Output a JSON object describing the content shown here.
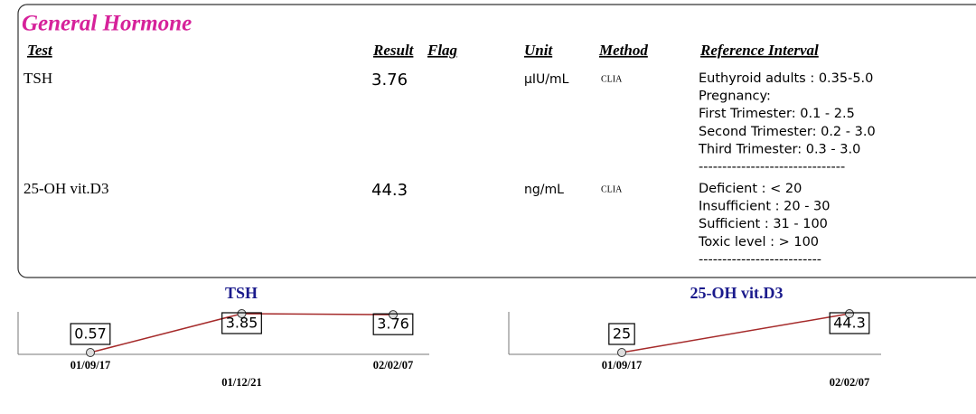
{
  "header": {
    "title": "General Hormone"
  },
  "table": {
    "columns": [
      "Test",
      "Result",
      "Flag",
      "Unit",
      "Method",
      "Reference Interval"
    ],
    "rows": [
      {
        "test": "TSH",
        "result": 3.76,
        "unit": "µIU/mL",
        "method": "CLIA",
        "reference": [
          "Euthyroid adults : 0.35-5.0",
          "Pregnancy:",
          "First Trimester: 0.1 - 2.5",
          "Second Trimester: 0.2 - 3.0",
          "Third Trimester: 0.3 - 3.0",
          "-------------------------------"
        ]
      },
      {
        "test": "25-OH vit.D3",
        "result": 44.3,
        "unit": "ng/mL",
        "method": "CLIA",
        "reference": [
          "Deficient : < 20",
          "Insufficient : 20 - 30",
          "Sufficient : 31 - 100",
          "Toxic level : > 100",
          "--------------------------"
        ]
      }
    ]
  },
  "trend_charts": [
    {
      "type": "line",
      "title": "TSH",
      "x": [
        "01/09/17",
        "01/12/21",
        "02/02/07"
      ],
      "values": [
        0.57,
        3.85,
        3.76
      ],
      "color": "#a52a2a"
    },
    {
      "type": "line",
      "title": "25-OH vit.D3",
      "x": [
        "01/09/17",
        "02/02/07"
      ],
      "values": [
        25,
        44.3
      ],
      "color": "#a52a2a"
    }
  ]
}
